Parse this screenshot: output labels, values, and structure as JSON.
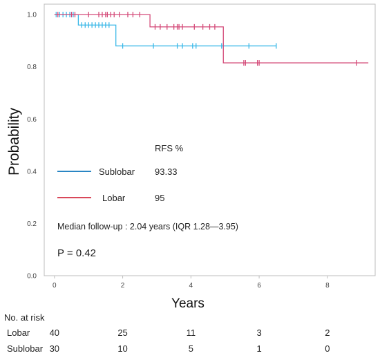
{
  "chart_data": {
    "type": "line",
    "step": true,
    "xlabel": "Years",
    "ylabel": "Probability",
    "xlim": [
      -0.3,
      9.4
    ],
    "ylim": [
      0,
      1.04
    ],
    "xticks": [
      "0",
      "2",
      "4",
      "6",
      "8"
    ],
    "yticks": [
      "0.0",
      "0.2",
      "0.4",
      "0.6",
      "0.8",
      "1.0"
    ],
    "grid": false,
    "series": [
      {
        "name": "Sublobar",
        "color": "#3ab8e8",
        "steps": [
          [
            0,
            1.0
          ],
          [
            0.7,
            0.96
          ],
          [
            1.8,
            0.88
          ],
          [
            6.5,
            0.88
          ]
        ],
        "censored": [
          [
            0.05,
            1.0
          ],
          [
            0.15,
            1.0
          ],
          [
            0.25,
            1.0
          ],
          [
            0.35,
            1.0
          ],
          [
            0.45,
            1.0
          ],
          [
            0.55,
            1.0
          ],
          [
            0.8,
            0.96
          ],
          [
            0.9,
            0.96
          ],
          [
            1.0,
            0.96
          ],
          [
            1.1,
            0.96
          ],
          [
            1.2,
            0.96
          ],
          [
            1.3,
            0.96
          ],
          [
            1.4,
            0.96
          ],
          [
            1.5,
            0.96
          ],
          [
            1.6,
            0.96
          ],
          [
            2.0,
            0.88
          ],
          [
            2.9,
            0.88
          ],
          [
            3.6,
            0.88
          ],
          [
            3.75,
            0.88
          ],
          [
            4.05,
            0.88
          ],
          [
            4.15,
            0.88
          ],
          [
            4.9,
            0.88
          ],
          [
            5.7,
            0.88
          ],
          [
            6.5,
            0.88
          ]
        ]
      },
      {
        "name": "Lobar",
        "color": "#d44a78",
        "steps": [
          [
            0,
            1.0
          ],
          [
            2.8,
            0.953
          ],
          [
            4.95,
            0.815
          ],
          [
            9.2,
            0.815
          ]
        ],
        "censored": [
          [
            0.1,
            1.0
          ],
          [
            0.5,
            1.0
          ],
          [
            0.6,
            1.0
          ],
          [
            1.0,
            1.0
          ],
          [
            1.3,
            1.0
          ],
          [
            1.4,
            1.0
          ],
          [
            1.5,
            1.0
          ],
          [
            1.55,
            1.0
          ],
          [
            1.65,
            1.0
          ],
          [
            1.75,
            1.0
          ],
          [
            1.9,
            1.0
          ],
          [
            2.15,
            1.0
          ],
          [
            2.3,
            1.0
          ],
          [
            2.5,
            1.0
          ],
          [
            2.95,
            0.953
          ],
          [
            3.1,
            0.953
          ],
          [
            3.3,
            0.953
          ],
          [
            3.5,
            0.953
          ],
          [
            3.6,
            0.953
          ],
          [
            3.65,
            0.953
          ],
          [
            3.75,
            0.953
          ],
          [
            4.1,
            0.953
          ],
          [
            4.35,
            0.953
          ],
          [
            4.55,
            0.953
          ],
          [
            4.7,
            0.953
          ],
          [
            5.55,
            0.815
          ],
          [
            5.6,
            0.815
          ],
          [
            5.95,
            0.815
          ],
          [
            6.0,
            0.815
          ],
          [
            8.85,
            0.815
          ]
        ]
      }
    ],
    "legend": {
      "header": "RFS %",
      "entries": [
        {
          "label": "Sublobar",
          "value": "93.33",
          "color": "#2a86c4"
        },
        {
          "label": "Lobar",
          "value": "95",
          "color": "#d9485a"
        }
      ]
    },
    "annotations": {
      "followup": "Median follow-up : 2.04 years (IQR 1.28—3.95)",
      "pvalue": "P = 0.42"
    },
    "risk_table": {
      "header": "No. at risk",
      "rows": [
        {
          "label": "Lobar",
          "values": [
            "40",
            "25",
            "11",
            "3",
            "2"
          ]
        },
        {
          "label": "Sublobar",
          "values": [
            "30",
            "10",
            "5",
            "1",
            "0"
          ]
        }
      ]
    }
  }
}
